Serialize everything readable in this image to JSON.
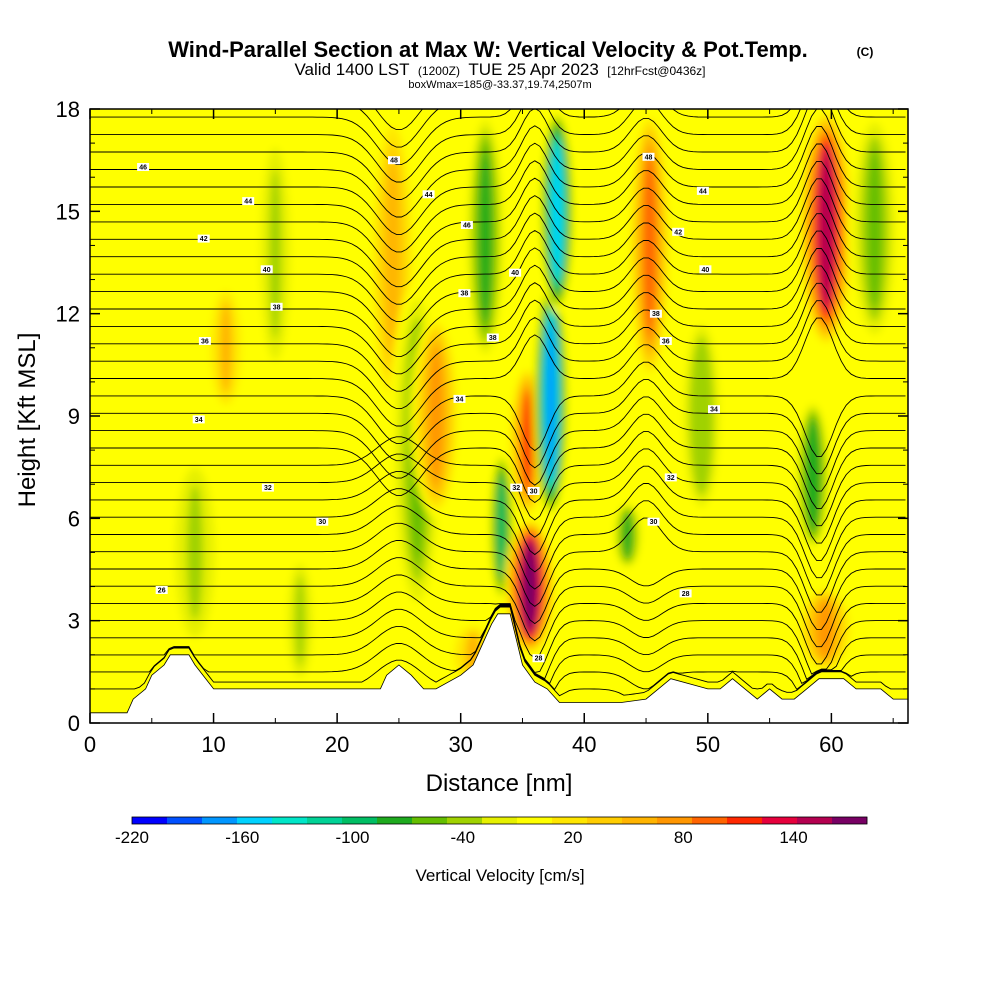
{
  "chart_data": {
    "type": "heatmap",
    "title": "Wind-Parallel Section at Max W: Vertical Velocity & Pot.Temp.",
    "title_mark": "(C)",
    "subtitle_prefix": "Valid 1400 LST",
    "subtitle_utc": "(1200Z)",
    "subtitle_date": "TUE 25 Apr 2023",
    "subtitle_fcst": "[12hrFcst@0436z]",
    "subtitle2": "boxWmax=185@-33.37,19.74,2507m",
    "xlabel": "Distance [nm]",
    "ylabel": "Height [Kft MSL]",
    "xlim": [
      0,
      66.2
    ],
    "ylim": [
      0,
      18
    ],
    "xticks": [
      "0",
      "10",
      "20",
      "30",
      "40",
      "50",
      "60"
    ],
    "yticks": [
      "0",
      "3",
      "6",
      "9",
      "12",
      "15",
      "18"
    ],
    "colorbar": {
      "label": "Vertical Velocity [cm/s]",
      "tick_labels": [
        "-220",
        "-160",
        "-100",
        "-40",
        "20",
        "80",
        "140"
      ],
      "tick_values": [
        -220,
        -160,
        -100,
        -40,
        20,
        80,
        140
      ],
      "min": -220,
      "max": 180,
      "step": 20,
      "colors": [
        "#0000ff",
        "#0050ff",
        "#0096ff",
        "#00d2ff",
        "#00e6c8",
        "#00d296",
        "#00be64",
        "#1eaa1e",
        "#64be00",
        "#a0d200",
        "#e6f000",
        "#ffff00",
        "#ffe600",
        "#ffcd00",
        "#ffb400",
        "#ff9600",
        "#ff6400",
        "#ff2800",
        "#e6003c",
        "#b40050",
        "#780064"
      ]
    },
    "background_w": 12,
    "updraft_columns": [
      {
        "x": 8.5,
        "w": -30,
        "width": 1.6,
        "y_bottom": 2.0,
        "y_top": 8.0
      },
      {
        "x": 11.0,
        "w": 60,
        "width": 1.2,
        "y_bottom": 9.0,
        "y_top": 13.0
      },
      {
        "x": 15.0,
        "w": -25,
        "width": 1.2,
        "y_bottom": 10.0,
        "y_top": 17.5
      },
      {
        "x": 24.5,
        "w": 75,
        "width": 1.3,
        "y_bottom": 9.0,
        "y_top": 18.0
      },
      {
        "x": 26.5,
        "w": -50,
        "width": 1.5,
        "y_bottom": 3.0,
        "y_top": 13.0
      },
      {
        "x": 28.0,
        "w": 90,
        "width": 1.3,
        "y_bottom": 6.0,
        "y_top": 12.0
      },
      {
        "x": 32.0,
        "w": -70,
        "width": 1.1,
        "y_bottom": 10.5,
        "y_top": 18.0
      },
      {
        "x": 33.3,
        "w": -90,
        "width": 0.7,
        "y_bottom": 3.5,
        "y_top": 8.0
      },
      {
        "x": 35.6,
        "w": 185,
        "width": 1.3,
        "y_bottom": 2.0,
        "y_top": 6.0
      },
      {
        "x": 35.4,
        "w": 120,
        "width": 1.0,
        "y_bottom": 6.0,
        "y_top": 10.5
      },
      {
        "x": 37.3,
        "w": -170,
        "width": 0.9,
        "y_bottom": 6.0,
        "y_top": 13.0
      },
      {
        "x": 37.8,
        "w": -150,
        "width": 0.9,
        "y_bottom": 12.0,
        "y_top": 18.0
      },
      {
        "x": 43.5,
        "w": -70,
        "width": 0.8,
        "y_bottom": 4.5,
        "y_top": 6.5
      },
      {
        "x": 45.3,
        "w": 110,
        "width": 1.1,
        "y_bottom": 10.0,
        "y_top": 18.0
      },
      {
        "x": 49.5,
        "w": -40,
        "width": 1.2,
        "y_bottom": 6.0,
        "y_top": 12.0
      },
      {
        "x": 58.5,
        "w": -80,
        "width": 0.9,
        "y_bottom": 5.0,
        "y_top": 9.5
      },
      {
        "x": 59.6,
        "w": 170,
        "width": 1.4,
        "y_bottom": 11.0,
        "y_top": 18.0
      },
      {
        "x": 59.5,
        "w": 95,
        "width": 1.5,
        "y_bottom": 1.5,
        "y_top": 4.0
      },
      {
        "x": 63.5,
        "w": -45,
        "width": 1.4,
        "y_bottom": 11.0,
        "y_top": 18.0
      },
      {
        "x": 17.0,
        "w": -35,
        "width": 1.0,
        "y_bottom": 1.0,
        "y_top": 5.0
      },
      {
        "x": 31.0,
        "w": 60,
        "width": 1.5,
        "y_bottom": 1.0,
        "y_top": 3.0
      }
    ],
    "terrain": {
      "x": [
        0,
        3,
        3.5,
        4.5,
        5,
        6,
        6.5,
        8,
        8.5,
        10,
        20,
        23.5,
        24,
        25,
        26,
        27,
        28,
        30,
        31,
        31.5,
        32,
        32.5,
        33,
        34,
        35,
        36,
        37,
        38,
        40,
        43,
        45,
        46,
        47,
        50,
        51,
        52,
        53,
        54,
        55,
        56,
        57,
        58,
        59,
        61,
        62,
        64,
        65,
        66.2
      ],
      "height_kft": [
        0.3,
        0.3,
        0.7,
        1.0,
        1.4,
        1.7,
        2.0,
        2.0,
        1.7,
        1.0,
        1.0,
        1.0,
        1.4,
        1.7,
        1.4,
        1.0,
        1.0,
        1.4,
        1.7,
        2.1,
        2.5,
        2.9,
        3.2,
        3.2,
        1.7,
        1.2,
        1.0,
        0.6,
        0.6,
        0.6,
        0.7,
        1.0,
        1.3,
        1.0,
        1.0,
        1.3,
        1.0,
        0.7,
        1.0,
        0.7,
        0.7,
        1.0,
        1.3,
        1.3,
        1.0,
        1.0,
        0.7,
        0.7
      ]
    },
    "isentropes": {
      "levels_degC": [
        24,
        26,
        28,
        30,
        32,
        34,
        36,
        38,
        40,
        42,
        44,
        46,
        48
      ],
      "labels": [
        {
          "text": "46",
          "x": 4.3,
          "y": 16.3
        },
        {
          "text": "44",
          "x": 12.8,
          "y": 15.3
        },
        {
          "text": "42",
          "x": 9.2,
          "y": 14.2
        },
        {
          "text": "40",
          "x": 14.3,
          "y": 13.3
        },
        {
          "text": "38",
          "x": 15.1,
          "y": 12.2
        },
        {
          "text": "36",
          "x": 9.3,
          "y": 11.2
        },
        {
          "text": "34",
          "x": 8.8,
          "y": 8.9
        },
        {
          "text": "32",
          "x": 14.4,
          "y": 6.9
        },
        {
          "text": "30",
          "x": 18.8,
          "y": 5.9
        },
        {
          "text": "26",
          "x": 5.8,
          "y": 3.9
        },
        {
          "text": "48",
          "x": 24.6,
          "y": 16.5
        },
        {
          "text": "44",
          "x": 27.4,
          "y": 15.5
        },
        {
          "text": "46",
          "x": 30.5,
          "y": 14.6
        },
        {
          "text": "40",
          "x": 34.4,
          "y": 13.2
        },
        {
          "text": "38",
          "x": 30.3,
          "y": 12.6
        },
        {
          "text": "38",
          "x": 32.6,
          "y": 11.3
        },
        {
          "text": "34",
          "x": 29.9,
          "y": 9.5
        },
        {
          "text": "32",
          "x": 34.5,
          "y": 6.9
        },
        {
          "text": "30",
          "x": 35.9,
          "y": 6.8
        },
        {
          "text": "28",
          "x": 36.3,
          "y": 1.9
        },
        {
          "text": "48",
          "x": 45.2,
          "y": 16.6
        },
        {
          "text": "44",
          "x": 49.6,
          "y": 15.6
        },
        {
          "text": "42",
          "x": 47.6,
          "y": 14.4
        },
        {
          "text": "40",
          "x": 49.8,
          "y": 13.3
        },
        {
          "text": "38",
          "x": 45.8,
          "y": 12.0
        },
        {
          "text": "36",
          "x": 46.6,
          "y": 11.2
        },
        {
          "text": "34",
          "x": 50.5,
          "y": 9.2
        },
        {
          "text": "32",
          "x": 47.0,
          "y": 7.2
        },
        {
          "text": "30",
          "x": 45.6,
          "y": 5.9
        },
        {
          "text": "28",
          "x": 48.2,
          "y": 3.8
        }
      ]
    }
  }
}
